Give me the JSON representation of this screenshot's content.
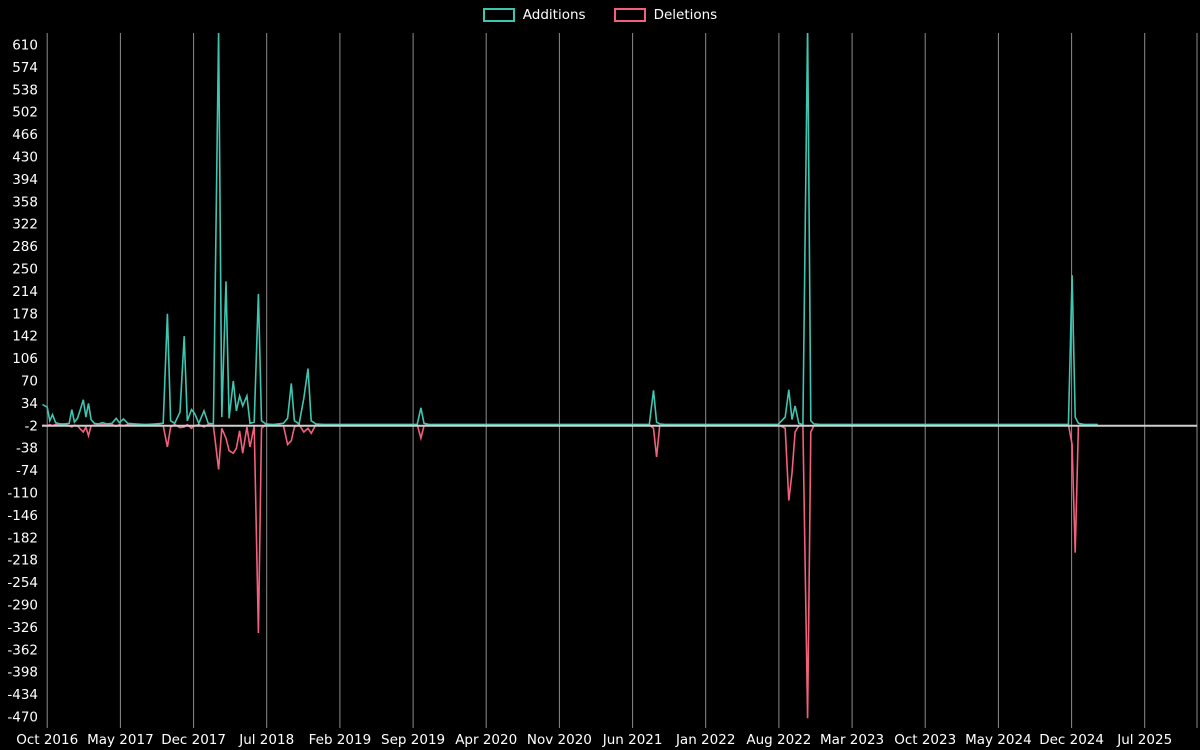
{
  "chart_data": {
    "type": "line",
    "title": "",
    "legend": {
      "position": "top-center",
      "entries": [
        "Additions",
        "Deletions"
      ]
    },
    "series": [
      {
        "name": "Additions",
        "color": "#3ec6b0"
      },
      {
        "name": "Deletions",
        "color": "#f2607c"
      }
    ],
    "colors": {
      "background": "#000000",
      "text": "#ffffff",
      "gridline": "#8c8c8c",
      "zero_line": "#cfcfcf"
    },
    "x_axis": {
      "unit": "months since Oct 2016",
      "tick_labels": [
        "Oct 2016",
        "May 2017",
        "Dec 2017",
        "Jul 2018",
        "Feb 2019",
        "Sep 2019",
        "Apr 2020",
        "Nov 2020",
        "Jun 2021",
        "Jan 2022",
        "Aug 2022",
        "Mar 2023",
        "Oct 2023",
        "May 2024",
        "Dec 2024",
        "Jul 2025"
      ],
      "tick_months": [
        0,
        7,
        14,
        21,
        28,
        35,
        42,
        49,
        56,
        63,
        70,
        77,
        84,
        91,
        98,
        105
      ]
    },
    "y_axis": {
      "ticks": [
        610,
        574,
        538,
        502,
        466,
        430,
        394,
        358,
        322,
        286,
        250,
        214,
        178,
        142,
        106,
        70,
        34,
        -2,
        -38,
        -74,
        -110,
        -146,
        -182,
        -218,
        -254,
        -290,
        -326,
        -362,
        -398,
        -434,
        -470
      ],
      "range": [
        -487,
        629
      ]
    },
    "zero_line_value": -2,
    "grid": "vertical-only",
    "points_format": [
      "month_offset",
      "additions",
      "deletions"
    ],
    "points": [
      [
        -0.45,
        32,
        -1
      ],
      [
        0,
        28,
        -2
      ],
      [
        0.25,
        6,
        0
      ],
      [
        0.5,
        16,
        -2
      ],
      [
        0.8,
        3,
        0
      ],
      [
        1.2,
        1,
        0
      ],
      [
        1.7,
        1,
        0
      ],
      [
        2.1,
        2,
        -2
      ],
      [
        2.35,
        24,
        -4
      ],
      [
        2.6,
        4,
        -1
      ],
      [
        2.9,
        10,
        -2
      ],
      [
        3.2,
        26,
        -8
      ],
      [
        3.45,
        40,
        -12
      ],
      [
        3.7,
        12,
        -4
      ],
      [
        3.95,
        34,
        -18
      ],
      [
        4.2,
        8,
        -2
      ],
      [
        4.5,
        2,
        -1
      ],
      [
        4.9,
        1,
        0
      ],
      [
        5.3,
        3,
        0
      ],
      [
        5.7,
        1,
        0
      ],
      [
        6.2,
        2,
        0
      ],
      [
        6.6,
        10,
        -3
      ],
      [
        6.9,
        3,
        0
      ],
      [
        7.3,
        9,
        -2
      ],
      [
        7.7,
        2,
        0
      ],
      [
        8.4,
        1,
        0
      ],
      [
        9.4,
        0,
        0
      ],
      [
        10.4,
        1,
        0
      ],
      [
        11.1,
        2,
        -2
      ],
      [
        11.5,
        178,
        -36
      ],
      [
        11.8,
        6,
        -4
      ],
      [
        12.2,
        2,
        0
      ],
      [
        12.7,
        20,
        -5
      ],
      [
        13.1,
        142,
        -4
      ],
      [
        13.4,
        6,
        0
      ],
      [
        13.8,
        24,
        -6
      ],
      [
        14.1,
        18,
        -2
      ],
      [
        14.5,
        2,
        0
      ],
      [
        15,
        22,
        -4
      ],
      [
        15.4,
        2,
        0
      ],
      [
        15.9,
        1,
        -2
      ],
      [
        16.4,
        632,
        -72
      ],
      [
        16.7,
        12,
        -6
      ],
      [
        17.1,
        230,
        -22
      ],
      [
        17.4,
        10,
        -42
      ],
      [
        17.8,
        70,
        -46
      ],
      [
        18.1,
        22,
        -38
      ],
      [
        18.4,
        46,
        -10
      ],
      [
        18.7,
        30,
        -46
      ],
      [
        19.1,
        46,
        -4
      ],
      [
        19.4,
        2,
        -36
      ],
      [
        19.8,
        4,
        -2
      ],
      [
        20.2,
        210,
        -335
      ],
      [
        20.5,
        6,
        -6
      ],
      [
        20.9,
        1,
        0
      ],
      [
        21.6,
        0,
        0
      ],
      [
        22.6,
        2,
        -2
      ],
      [
        23,
        10,
        -32
      ],
      [
        23.35,
        66,
        -26
      ],
      [
        23.65,
        6,
        -4
      ],
      [
        24.1,
        1,
        0
      ],
      [
        24.55,
        42,
        -12
      ],
      [
        24.95,
        90,
        -6
      ],
      [
        25.25,
        6,
        -14
      ],
      [
        25.7,
        1,
        0
      ],
      [
        26.5,
        0,
        0
      ],
      [
        28.5,
        0,
        0
      ],
      [
        31.5,
        0,
        0
      ],
      [
        34,
        0,
        0
      ],
      [
        35.4,
        0,
        0
      ],
      [
        35.75,
        27,
        -22
      ],
      [
        36.05,
        2,
        -2
      ],
      [
        36.6,
        0,
        0
      ],
      [
        39,
        0,
        0
      ],
      [
        43,
        0,
        0
      ],
      [
        47,
        0,
        0
      ],
      [
        51,
        0,
        0
      ],
      [
        55,
        0,
        0
      ],
      [
        57.6,
        0,
        0
      ],
      [
        58,
        55,
        -6
      ],
      [
        58.3,
        4,
        -52
      ],
      [
        58.6,
        1,
        -2
      ],
      [
        59.2,
        0,
        0
      ],
      [
        62,
        0,
        0
      ],
      [
        66,
        0,
        0
      ],
      [
        69.9,
        0,
        0
      ],
      [
        70.6,
        12,
        -6
      ],
      [
        70.95,
        56,
        -122
      ],
      [
        71.25,
        8,
        -78
      ],
      [
        71.55,
        30,
        -12
      ],
      [
        71.9,
        2,
        -2
      ],
      [
        72.3,
        0,
        0
      ],
      [
        72.75,
        640,
        -472
      ],
      [
        73.05,
        6,
        -12
      ],
      [
        73.35,
        1,
        -2
      ],
      [
        74,
        0,
        0
      ],
      [
        77,
        0,
        0
      ],
      [
        81,
        0,
        0
      ],
      [
        85,
        0,
        0
      ],
      [
        89,
        0,
        0
      ],
      [
        93,
        0,
        0
      ],
      [
        96.5,
        0,
        0
      ],
      [
        97.7,
        0,
        0
      ],
      [
        98.05,
        240,
        -32
      ],
      [
        98.35,
        12,
        -206
      ],
      [
        98.65,
        2,
        -2
      ],
      [
        99.3,
        0,
        0
      ],
      [
        100.5,
        0,
        0
      ]
    ]
  }
}
